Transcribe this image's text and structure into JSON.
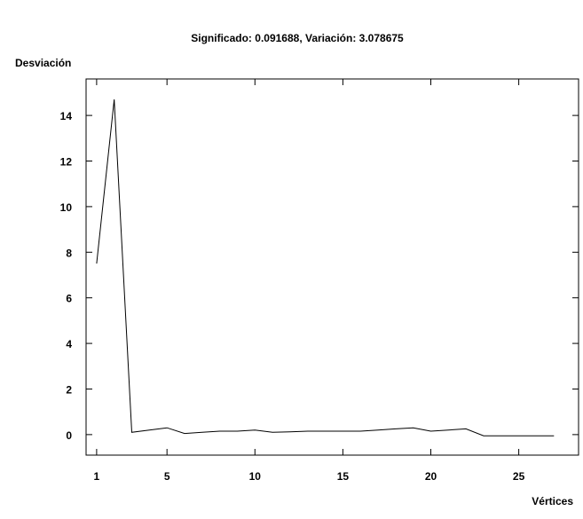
{
  "chart_data": {
    "type": "line",
    "title": "Significado: 0.091688, Variación: 3.078675",
    "xlabel": "Vértices",
    "ylabel": "Desviación",
    "xlim": [
      0.4,
      28.4
    ],
    "ylim": [
      -0.9,
      15.6
    ],
    "xticks": [
      1,
      5,
      10,
      15,
      20,
      25
    ],
    "yticks": [
      0,
      2,
      4,
      6,
      8,
      10,
      12,
      14
    ],
    "grid": false,
    "series": [
      {
        "values": [
          [
            1,
            7.5
          ],
          [
            2,
            14.7
          ],
          [
            3,
            0.1
          ],
          [
            4,
            0.2
          ],
          [
            5,
            0.3
          ],
          [
            6,
            0.05
          ],
          [
            7,
            0.1
          ],
          [
            8,
            0.15
          ],
          [
            9,
            0.15
          ],
          [
            10,
            0.2
          ],
          [
            11,
            0.1
          ],
          [
            12,
            0.12
          ],
          [
            13,
            0.15
          ],
          [
            14,
            0.15
          ],
          [
            15,
            0.15
          ],
          [
            16,
            0.15
          ],
          [
            17,
            0.2
          ],
          [
            18,
            0.25
          ],
          [
            19,
            0.3
          ],
          [
            20,
            0.15
          ],
          [
            21,
            0.2
          ],
          [
            22,
            0.25
          ],
          [
            23,
            -0.05
          ],
          [
            24,
            -0.05
          ],
          [
            25,
            -0.05
          ],
          [
            26,
            -0.05
          ],
          [
            27,
            -0.05
          ]
        ]
      }
    ]
  }
}
